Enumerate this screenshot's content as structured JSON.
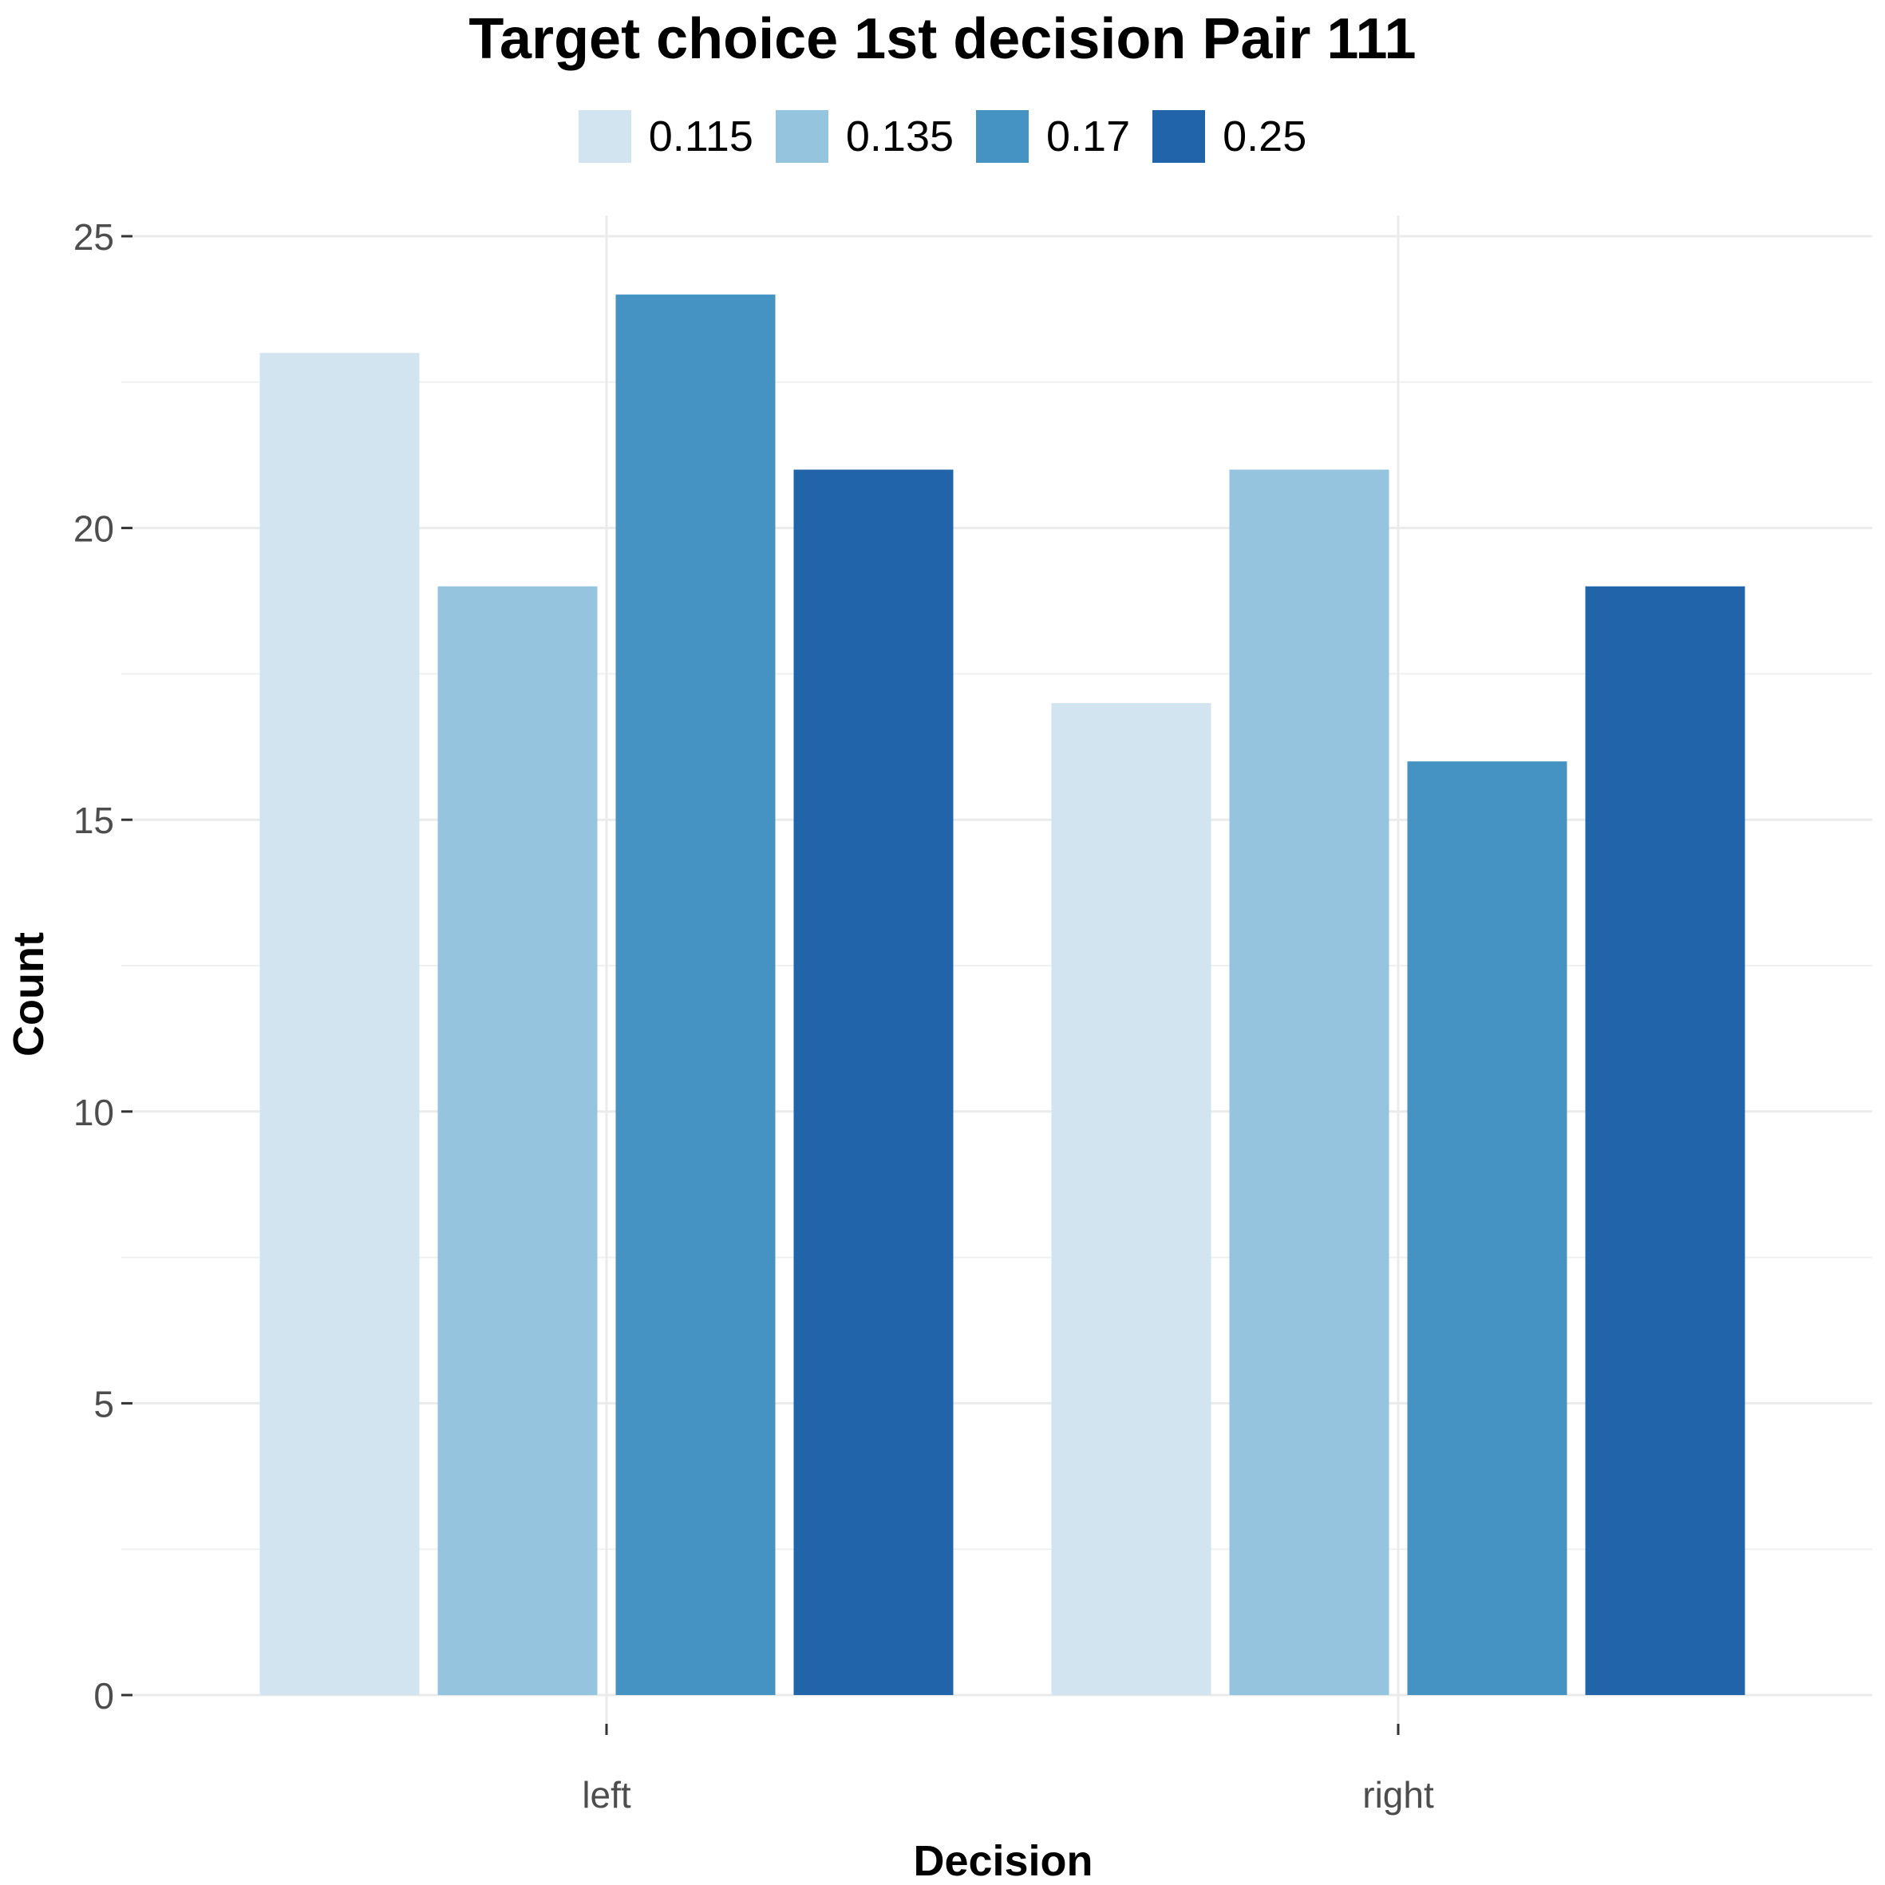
{
  "chart_data": {
    "type": "bar",
    "title": "Target choice 1st decision Pair 111",
    "xlabel": "Decision",
    "ylabel": "Count",
    "categories": [
      "left",
      "right"
    ],
    "series": [
      {
        "name": "0.115",
        "color": "#d2e4f0",
        "values": [
          23,
          17
        ]
      },
      {
        "name": "0.135",
        "color": "#94c4de",
        "values": [
          19,
          21
        ]
      },
      {
        "name": "0.17",
        "color": "#4493c3",
        "values": [
          24,
          16
        ]
      },
      {
        "name": "0.25",
        "color": "#2264aa",
        "values": [
          21,
          19
        ]
      }
    ],
    "ylim": [
      0,
      25
    ],
    "yticks": [
      0,
      5,
      10,
      15,
      20,
      25
    ],
    "grid": true,
    "legend_position": "top"
  }
}
